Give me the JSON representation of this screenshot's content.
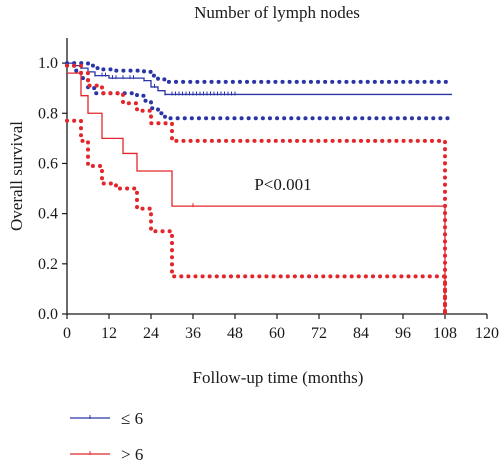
{
  "chart_data": {
    "type": "line",
    "title": "Number of lymph nodes",
    "xlabel": "Follow-up time (months)",
    "ylabel": "Overall survival",
    "xlim": [
      0,
      120
    ],
    "ylim": [
      0,
      1.1
    ],
    "x_ticks": [
      "0",
      "12",
      "24",
      "36",
      "48",
      "60",
      "72",
      "84",
      "96",
      "108",
      "120"
    ],
    "y_ticks": [
      "0.0",
      "0.2",
      "0.4",
      "0.6",
      "0.8",
      "1.0"
    ],
    "annotation": "P<0.001",
    "grid": false,
    "legend_position": "bottom-left",
    "series": [
      {
        "name": "≤ 6",
        "color": "#2a36a8",
        "survival": [
          [
            0,
            1.0
          ],
          [
            2,
            0.99
          ],
          [
            4,
            0.98
          ],
          [
            6,
            0.965
          ],
          [
            8,
            0.95
          ],
          [
            12,
            0.94
          ],
          [
            22,
            0.93
          ],
          [
            24,
            0.905
          ],
          [
            26,
            0.89
          ],
          [
            28,
            0.875
          ],
          [
            110,
            0.875
          ]
        ],
        "upper_ci": [
          [
            0,
            1.0
          ],
          [
            3,
            1.0
          ],
          [
            6,
            0.99
          ],
          [
            8,
            0.98
          ],
          [
            10,
            0.975
          ],
          [
            14,
            0.97
          ],
          [
            22,
            0.965
          ],
          [
            24,
            0.95
          ],
          [
            26,
            0.935
          ],
          [
            28,
            0.925
          ],
          [
            110,
            0.925
          ]
        ],
        "lower_ci": [
          [
            0,
            0.99
          ],
          [
            2,
            0.97
          ],
          [
            4,
            0.94
          ],
          [
            6,
            0.9
          ],
          [
            8,
            0.88
          ],
          [
            20,
            0.87
          ],
          [
            22,
            0.85
          ],
          [
            24,
            0.82
          ],
          [
            26,
            0.8
          ],
          [
            28,
            0.78
          ],
          [
            110,
            0.78
          ]
        ],
        "censor_x": [
          2,
          4,
          6,
          8,
          10,
          11,
          13,
          14,
          16,
          18,
          19,
          22,
          25,
          28,
          30,
          31,
          32,
          33,
          34,
          35,
          36,
          37,
          38,
          39,
          40,
          41,
          42,
          43,
          44,
          45,
          46,
          47,
          48
        ]
      },
      {
        "name": "> 6",
        "color": "#e3262b",
        "survival": [
          [
            0,
            0.96
          ],
          [
            4,
            0.87
          ],
          [
            6,
            0.8
          ],
          [
            10,
            0.7
          ],
          [
            16,
            0.64
          ],
          [
            20,
            0.57
          ],
          [
            30,
            0.43
          ],
          [
            108,
            0.43
          ],
          [
            108,
            0.0
          ]
        ],
        "upper_ci": [
          [
            0,
            0.99
          ],
          [
            4,
            0.96
          ],
          [
            6,
            0.91
          ],
          [
            10,
            0.88
          ],
          [
            16,
            0.84
          ],
          [
            20,
            0.81
          ],
          [
            24,
            0.76
          ],
          [
            30,
            0.69
          ],
          [
            108,
            0.69
          ],
          [
            108,
            0.0
          ]
        ],
        "lower_ci": [
          [
            0,
            0.77
          ],
          [
            4,
            0.69
          ],
          [
            6,
            0.59
          ],
          [
            10,
            0.52
          ],
          [
            14,
            0.5
          ],
          [
            20,
            0.42
          ],
          [
            24,
            0.33
          ],
          [
            30,
            0.15
          ],
          [
            108,
            0.15
          ],
          [
            108,
            0.0
          ]
        ],
        "censor_x": [
          36
        ]
      }
    ]
  }
}
